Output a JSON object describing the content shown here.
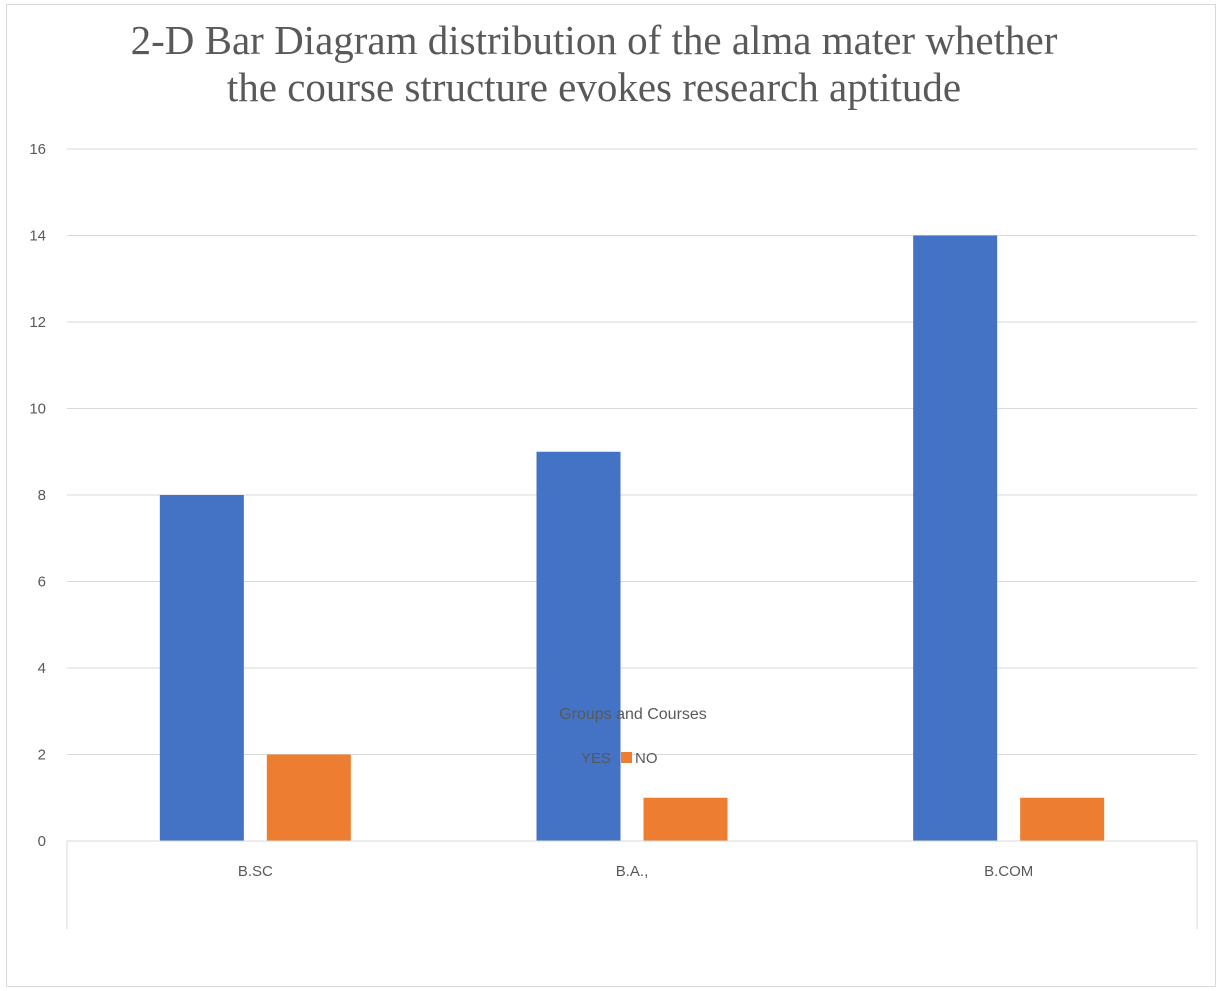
{
  "chart_data": {
    "type": "bar",
    "title": "2-D Bar Diagram distribution of the alma mater whether the course structure evokes research aptitude",
    "title_lines": [
      "2-D Bar Diagram distribution of the alma mater whether",
      "the course structure evokes research aptitude"
    ],
    "xlabel": "Groups and Courses",
    "ylabel": "",
    "categories": [
      "B.SC",
      "B.A.,",
      "B.COM"
    ],
    "series": [
      {
        "name": "YES",
        "values": [
          8,
          9,
          14
        ],
        "color": "#4472c4"
      },
      {
        "name": "NO",
        "values": [
          2,
          1,
          1
        ],
        "color": "#ed7d31"
      }
    ],
    "ylim": [
      0,
      16
    ],
    "yticks": [
      0,
      2,
      4,
      6,
      8,
      10,
      12,
      14,
      16
    ],
    "grid": true,
    "legend_position": "bottom"
  }
}
